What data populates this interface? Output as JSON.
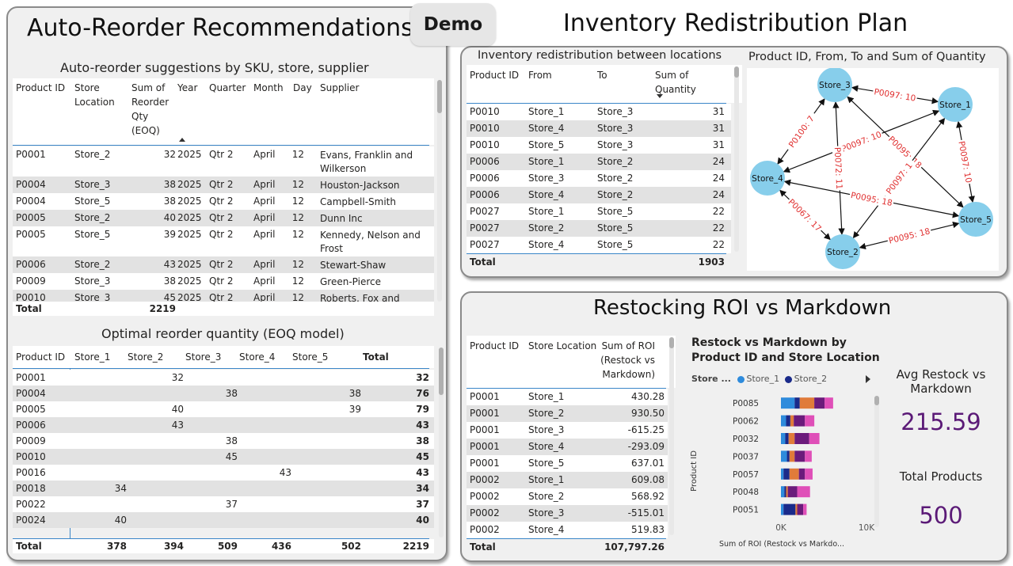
{
  "demo_label": "Demo",
  "reorder": {
    "title": "Auto-Reorder Recommendations",
    "suggest_title": "Auto-reorder suggestions by SKU, store, supplier",
    "headers": [
      "Product ID",
      "Store Location",
      "Sum of Reorder Qty (EOQ)",
      "Year",
      "Quarter",
      "Month",
      "Day",
      "Supplier"
    ],
    "rows": [
      [
        "P0001",
        "Store_2",
        "32",
        "2025",
        "Qtr 2",
        "April",
        "12",
        "Evans, Franklin and Wilkerson"
      ],
      [
        "P0004",
        "Store_3",
        "38",
        "2025",
        "Qtr 2",
        "April",
        "12",
        "Houston-Jackson"
      ],
      [
        "P0004",
        "Store_5",
        "38",
        "2025",
        "Qtr 2",
        "April",
        "12",
        "Campbell-Smith"
      ],
      [
        "P0005",
        "Store_2",
        "40",
        "2025",
        "Qtr 2",
        "April",
        "12",
        "Dunn Inc"
      ],
      [
        "P0005",
        "Store_5",
        "39",
        "2025",
        "Qtr 2",
        "April",
        "12",
        "Kennedy, Nelson and Frost"
      ],
      [
        "P0006",
        "Store_2",
        "43",
        "2025",
        "Qtr 2",
        "April",
        "12",
        "Stewart-Shaw"
      ],
      [
        "P0009",
        "Store_3",
        "38",
        "2025",
        "Qtr 2",
        "April",
        "12",
        "Green-Pierce"
      ],
      [
        "P0010",
        "Store_3",
        "45",
        "2025",
        "Qtr 2",
        "April",
        "12",
        "Roberts, Fox and"
      ]
    ],
    "total_label": "Total",
    "total_value": "2219"
  },
  "eoq": {
    "title": "Optimal reorder quantity (EOQ model)",
    "headers": [
      "Product ID",
      "Store_1",
      "Store_2",
      "Store_3",
      "Store_4",
      "Store_5",
      "Total"
    ],
    "rows": [
      [
        "P0001",
        "",
        "32",
        "",
        "",
        "",
        "32"
      ],
      [
        "P0004",
        "",
        "",
        "38",
        "",
        "38",
        "76"
      ],
      [
        "P0005",
        "",
        "40",
        "",
        "",
        "39",
        "79"
      ],
      [
        "P0006",
        "",
        "43",
        "",
        "",
        "",
        "43"
      ],
      [
        "P0009",
        "",
        "",
        "38",
        "",
        "",
        "38"
      ],
      [
        "P0010",
        "",
        "",
        "45",
        "",
        "",
        "45"
      ],
      [
        "P0016",
        "",
        "",
        "",
        "43",
        "",
        "43"
      ],
      [
        "P0018",
        "34",
        "",
        "",
        "",
        "",
        "34"
      ],
      [
        "P0022",
        "",
        "",
        "37",
        "",
        "",
        "37"
      ],
      [
        "P0024",
        "40",
        "",
        "",
        "",
        "",
        "40"
      ]
    ],
    "totals": [
      "Total",
      "378",
      "394",
      "509",
      "436",
      "502",
      "2219"
    ]
  },
  "redistribution": {
    "title": "Inventory Redistribution Plan",
    "table_title": "Inventory redistribution between locations",
    "headers": [
      "Product ID",
      "From",
      "To",
      "Sum of Quantity"
    ],
    "rows": [
      [
        "P0010",
        "Store_1",
        "Store_3",
        "31"
      ],
      [
        "P0010",
        "Store_4",
        "Store_3",
        "31"
      ],
      [
        "P0010",
        "Store_5",
        "Store_3",
        "31"
      ],
      [
        "P0006",
        "Store_1",
        "Store_2",
        "24"
      ],
      [
        "P0006",
        "Store_3",
        "Store_2",
        "24"
      ],
      [
        "P0006",
        "Store_4",
        "Store_2",
        "24"
      ],
      [
        "P0027",
        "Store_1",
        "Store_5",
        "22"
      ],
      [
        "P0027",
        "Store_2",
        "Store_5",
        "22"
      ],
      [
        "P0027",
        "Store_4",
        "Store_5",
        "22"
      ]
    ],
    "total_label": "Total",
    "total_value": "1903",
    "graph_title": "Product ID, From, To and Sum of Quantity",
    "nodes": [
      "Store_3",
      "Store_1",
      "Store_4",
      "Store_5",
      "Store_2"
    ],
    "edges": [
      {
        "label": "P0097: 10"
      },
      {
        "label": "P0100: 7"
      },
      {
        "label": "P0097: 10"
      },
      {
        "label": "P0095: 18"
      },
      {
        "label": "P0097: 10"
      },
      {
        "label": "P0072: 11"
      },
      {
        "label": "P0097: 1"
      },
      {
        "label": "P0095: 18"
      },
      {
        "label": "P0067: 17"
      },
      {
        "label": "P0095: 18"
      }
    ]
  },
  "roi": {
    "title": "Restocking ROI vs Markdown",
    "headers": [
      "Product ID",
      "Store Location",
      "Sum of ROI (Restock vs Markdown)"
    ],
    "rows": [
      [
        "P0001",
        "Store_1",
        "430.28"
      ],
      [
        "P0001",
        "Store_2",
        "930.50"
      ],
      [
        "P0001",
        "Store_3",
        "-615.25"
      ],
      [
        "P0001",
        "Store_4",
        "-293.09"
      ],
      [
        "P0001",
        "Store_5",
        "637.01"
      ],
      [
        "P0002",
        "Store_1",
        "609.08"
      ],
      [
        "P0002",
        "Store_2",
        "568.92"
      ],
      [
        "P0002",
        "Store_3",
        "-515.01"
      ],
      [
        "P0002",
        "Store_4",
        "519.83"
      ]
    ],
    "total_label": "Total",
    "total_value": "107,797.26",
    "kpi": {
      "avg_label": "Avg Restock vs Markdown",
      "avg_value": "215.59",
      "count_label": "Total Products",
      "count_value": "500"
    }
  },
  "chart_data": {
    "type": "bar",
    "orientation": "horizontal-stacked",
    "title": "Restock vs Markdown by Product ID and Store Location",
    "legend_title": "Store ...",
    "legend": [
      "Store_1",
      "Store_2"
    ],
    "categories": [
      "P0085",
      "P0062",
      "P0032",
      "P0037",
      "P0057",
      "P0048",
      "P0051"
    ],
    "series": [
      {
        "name": "Store_1",
        "color": "#2e8bdc",
        "values": [
          1600,
          600,
          500,
          700,
          300,
          400,
          300
        ]
      },
      {
        "name": "Store_2",
        "color": "#1a2a8a",
        "values": [
          600,
          500,
          400,
          300,
          700,
          200,
          1400
        ]
      },
      {
        "name": "Store_3",
        "color": "#e07b3a",
        "values": [
          1700,
          400,
          700,
          600,
          1100,
          200,
          200
        ]
      },
      {
        "name": "Store_4",
        "color": "#6b1b7b",
        "values": [
          1200,
          1300,
          1700,
          1200,
          700,
          1100,
          700
        ]
      },
      {
        "name": "Store_5",
        "color": "#df4fb8",
        "values": [
          1000,
          1100,
          1200,
          800,
          900,
          1500,
          400
        ]
      }
    ],
    "xlabel": "Sum of ROI (Restock vs Markdo...",
    "ylabel": "Product ID",
    "x_ticks": [
      "0K",
      "10K"
    ],
    "xlim": [
      0,
      10000
    ]
  }
}
